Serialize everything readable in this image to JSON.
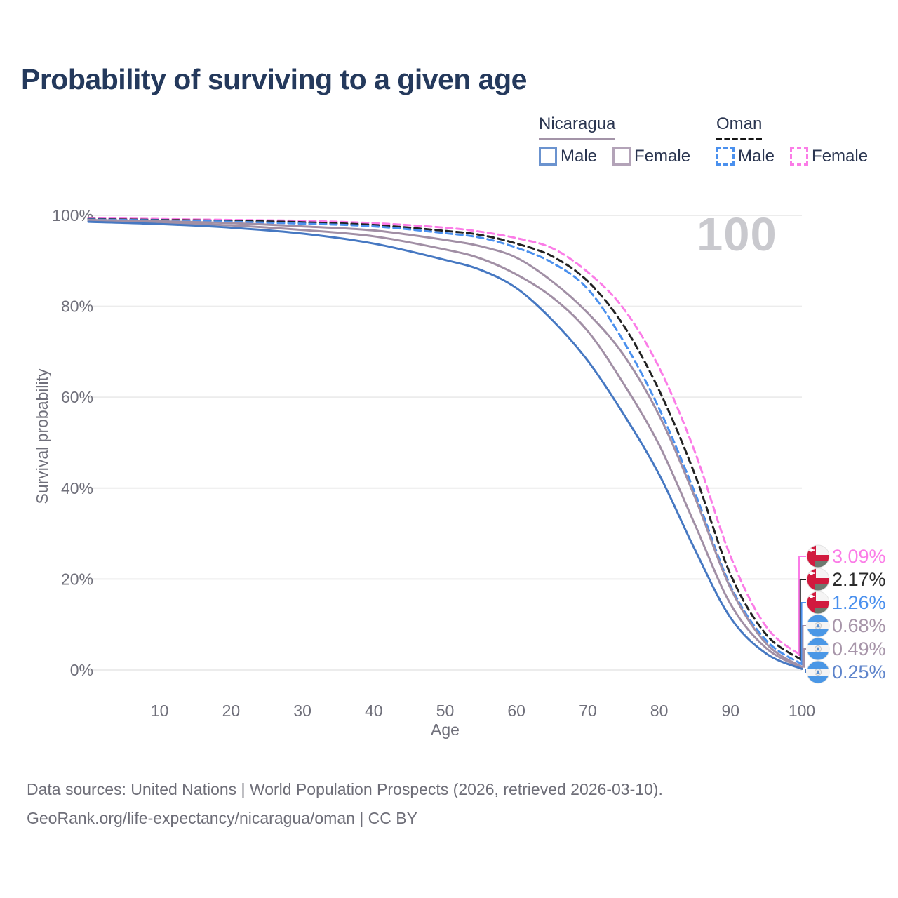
{
  "title": "Probability of surviving to a given age",
  "watermark": "100",
  "legend": {
    "groups": [
      {
        "label": "Nicaragua",
        "line_style": "solid",
        "underline_color": "#a394a8",
        "items": [
          {
            "label": "Male",
            "color": "#4678c2"
          },
          {
            "label": "Female",
            "color": "#a18fa5"
          }
        ]
      },
      {
        "label": "Oman",
        "line_style": "dashed",
        "underline_color": "#141414",
        "items": [
          {
            "label": "Male",
            "color": "#4a90ee"
          },
          {
            "label": "Female",
            "color": "#fb7ce7"
          }
        ]
      }
    ]
  },
  "chart_data": {
    "type": "line",
    "title": "Probability of surviving to a given age",
    "xlabel": "Age",
    "ylabel": "Survival probability",
    "xlim": [
      0,
      100
    ],
    "ylim": [
      0,
      100
    ],
    "grid": "horizontal",
    "legend_position": "top-right",
    "x_ticks": [
      10,
      20,
      30,
      40,
      50,
      60,
      70,
      80,
      90,
      100
    ],
    "y_ticks": [
      0,
      20,
      40,
      60,
      80,
      100
    ],
    "y_tick_labels": [
      "0%",
      "20%",
      "40%",
      "60%",
      "80%",
      "100%"
    ],
    "x": [
      0,
      10,
      20,
      30,
      40,
      50,
      55,
      60,
      65,
      70,
      75,
      80,
      85,
      90,
      95,
      100
    ],
    "series": [
      {
        "name": "Oman Female",
        "color": "#fb7ce7",
        "label_color": "#fb7ce7",
        "dash": true,
        "flag": "oman",
        "end_label": "3.09%",
        "values": [
          99.4,
          99.2,
          99.0,
          98.8,
          98.3,
          97.3,
          96.4,
          95.0,
          92.8,
          87.5,
          79.5,
          66.5,
          48.0,
          25.0,
          9.5,
          3.09
        ]
      },
      {
        "name": "Oman Both sexes",
        "color": "#222222",
        "label_color": "#2b2b2b",
        "dash": true,
        "flag": "oman",
        "end_label": "2.17%",
        "values": [
          99.2,
          99.0,
          98.8,
          98.5,
          97.9,
          96.6,
          95.7,
          93.8,
          91.0,
          85.5,
          75.8,
          61.5,
          43.0,
          21.0,
          7.8,
          2.17
        ]
      },
      {
        "name": "Oman Male",
        "color": "#4a90ee",
        "label_color": "#4a90ee",
        "dash": true,
        "flag": "oman",
        "end_label": "1.26%",
        "values": [
          99.1,
          98.9,
          98.6,
          98.2,
          97.6,
          96.1,
          95.1,
          92.9,
          89.6,
          83.8,
          72.3,
          57.5,
          39.0,
          18.5,
          6.5,
          1.26
        ]
      },
      {
        "name": "Nicaragua Female",
        "color": "#a18fa5",
        "label_color": "#a795a9",
        "dash": false,
        "flag": "nicaragua",
        "end_label": "0.68%",
        "values": [
          99.0,
          98.7,
          98.3,
          97.6,
          96.7,
          94.6,
          93.2,
          90.7,
          85.5,
          78.5,
          69.3,
          56.0,
          38.0,
          18.0,
          5.8,
          0.68
        ]
      },
      {
        "name": "Nicaragua Both sexes",
        "color": "#a18fa5",
        "label_color": "#a795a9",
        "dash": false,
        "flag": "nicaragua",
        "end_label": "0.49%",
        "values": [
          98.8,
          98.4,
          97.8,
          96.8,
          95.4,
          92.5,
          90.5,
          87.0,
          82.0,
          74.5,
          63.0,
          49.5,
          32.0,
          14.5,
          4.8,
          0.49
        ]
      },
      {
        "name": "Nicaragua Male",
        "color": "#4678c2",
        "label_color": "#5e84cb",
        "dash": false,
        "flag": "nicaragua",
        "end_label": "0.25%",
        "values": [
          98.6,
          98.1,
          97.3,
          96.0,
          93.8,
          90.2,
          88.0,
          84.0,
          77.0,
          68.0,
          56.3,
          43.0,
          26.5,
          11.5,
          3.6,
          0.25
        ]
      }
    ]
  },
  "footer": {
    "line1": "Data sources: United Nations | World Population Prospects (2026, retrieved 2026-03-10).",
    "line2": "GeoRank.org/life-expectancy/nicaragua/oman | CC BY"
  }
}
